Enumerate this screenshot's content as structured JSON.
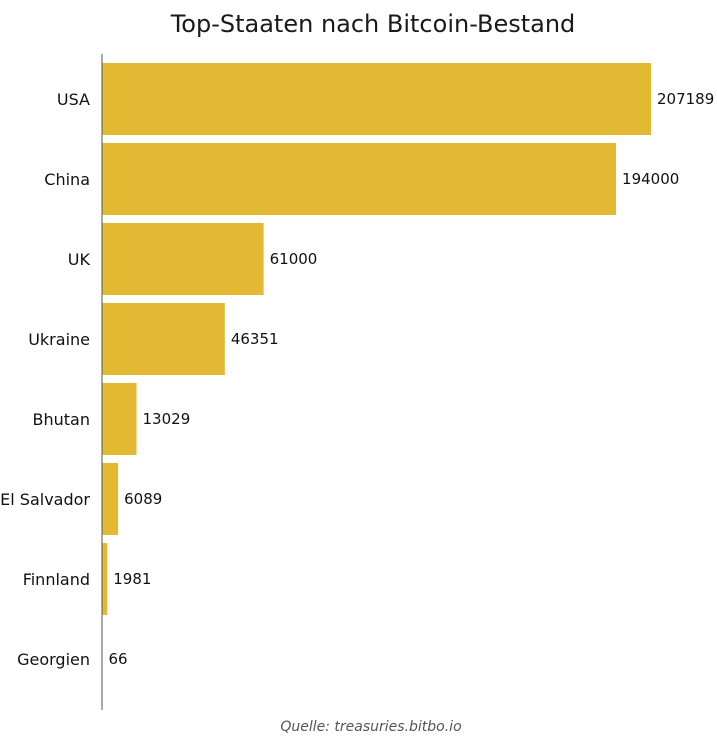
{
  "chart_data": {
    "type": "bar",
    "orientation": "horizontal",
    "title": "Top-Staaten nach Bitcoin-Bestand",
    "categories": [
      "USA",
      "China",
      "UK",
      "Ukraine",
      "Bhutan",
      "El Salvador",
      "Finnland",
      "Georgien"
    ],
    "values": [
      207189,
      194000,
      61000,
      46351,
      13029,
      6089,
      1981,
      66
    ],
    "value_labels": [
      "207189",
      "194000",
      "61000",
      "46351",
      "13029",
      "6089",
      "1981",
      "66"
    ],
    "xlabel": "",
    "ylabel": "",
    "xlim": [
      0,
      207189
    ],
    "grid": false,
    "bar_color": "#E3B934",
    "axis_color": "#555555"
  },
  "source": "Quelle: treasuries.bitbo.io"
}
